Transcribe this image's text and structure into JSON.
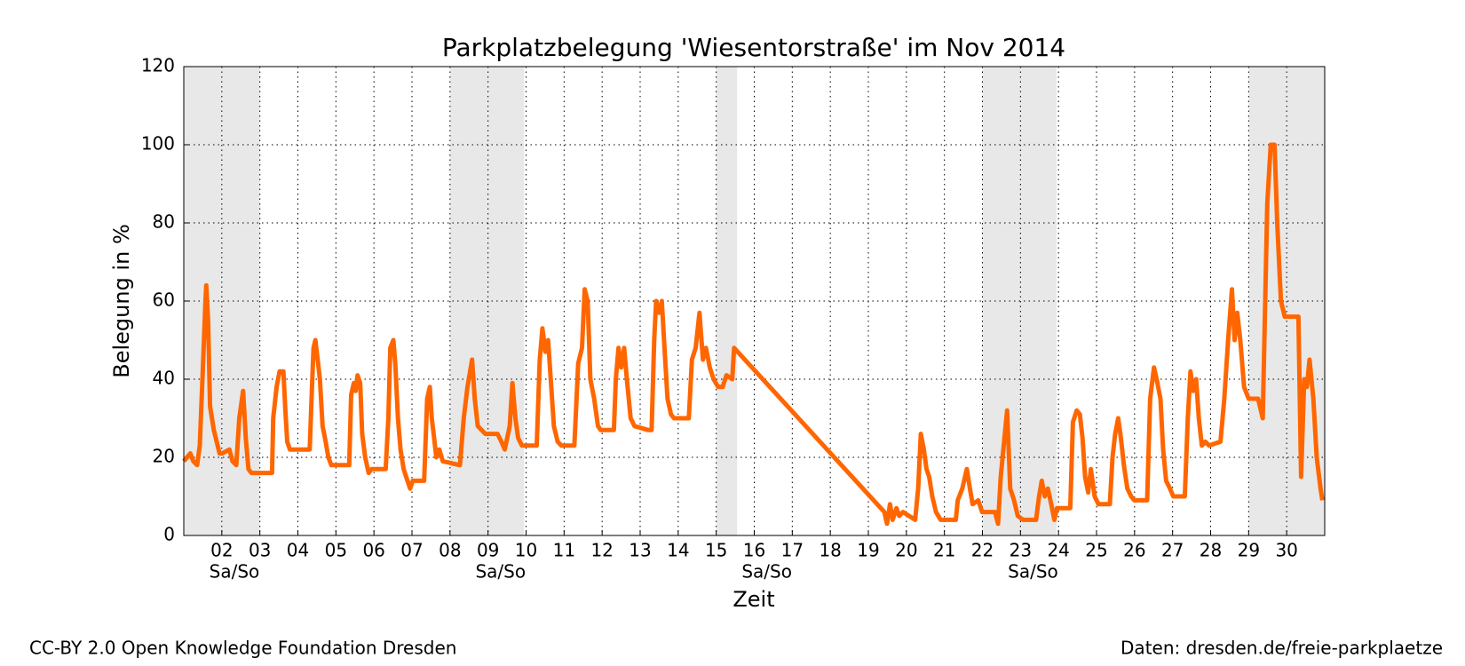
{
  "chart_data": {
    "type": "line",
    "title": "Parkplatzbelegung 'Wiesentorstraße' im Nov 2014",
    "xlabel": "Zeit",
    "ylabel": "Belegung in %",
    "color": "#ff6600",
    "grid": true,
    "shade_color": "#e8e8e8",
    "shaded_spans": [
      [
        1,
        3
      ],
      [
        8,
        9.95
      ],
      [
        15,
        15.55
      ],
      [
        22,
        23.95
      ],
      [
        29,
        31
      ]
    ],
    "annotations": [
      {
        "text": "Sa/So",
        "x": 2.33
      },
      {
        "text": "Sa/So",
        "x": 9.33
      },
      {
        "text": "Sa/So",
        "x": 16.33
      },
      {
        "text": "Sa/So",
        "x": 23.33
      }
    ],
    "xlim": [
      1,
      31
    ],
    "xticks": [
      {
        "value": 2,
        "label": "02"
      },
      {
        "value": 3,
        "label": "03"
      },
      {
        "value": 4,
        "label": "04"
      },
      {
        "value": 5,
        "label": "05"
      },
      {
        "value": 6,
        "label": "06"
      },
      {
        "value": 7,
        "label": "07"
      },
      {
        "value": 8,
        "label": "08"
      },
      {
        "value": 9,
        "label": "09"
      },
      10,
      11,
      12,
      13,
      14,
      15,
      16,
      17,
      18,
      19,
      20,
      21,
      22,
      23,
      24,
      25,
      26,
      27,
      28,
      29,
      30
    ],
    "ylim": [
      0,
      120
    ],
    "yticks": [
      0,
      20,
      40,
      60,
      80,
      100,
      120
    ],
    "x": [
      1.0,
      1.17,
      1.25,
      1.35,
      1.42,
      1.49,
      1.57,
      1.59,
      1.64,
      1.69,
      1.79,
      1.89,
      1.94,
      2.01,
      2.2,
      2.28,
      2.38,
      2.46,
      2.56,
      2.63,
      2.7,
      2.78,
      3.32,
      3.35,
      3.44,
      3.52,
      3.62,
      3.67,
      3.72,
      3.79,
      4.31,
      4.36,
      4.41,
      4.46,
      4.51,
      4.58,
      4.65,
      4.73,
      4.8,
      4.88,
      5.35,
      5.4,
      5.47,
      5.52,
      5.57,
      5.64,
      5.69,
      5.77,
      5.86,
      5.94,
      6.31,
      6.38,
      6.43,
      6.51,
      6.56,
      6.63,
      6.7,
      6.78,
      6.88,
      6.95,
      7.02,
      7.32,
      7.4,
      7.47,
      7.52,
      7.57,
      7.64,
      7.72,
      7.81,
      8.26,
      8.36,
      8.46,
      8.58,
      8.65,
      8.73,
      8.83,
      8.93,
      9.25,
      9.35,
      9.44,
      9.57,
      9.64,
      9.72,
      9.79,
      9.89,
      10.28,
      10.36,
      10.43,
      10.51,
      10.58,
      10.65,
      10.73,
      10.83,
      10.93,
      11.27,
      11.37,
      11.47,
      11.54,
      11.62,
      11.69,
      11.79,
      11.89,
      11.96,
      12.31,
      12.36,
      12.43,
      12.5,
      12.58,
      12.65,
      12.75,
      12.85,
      13.2,
      13.3,
      13.37,
      13.42,
      13.5,
      13.57,
      13.64,
      13.72,
      13.81,
      13.89,
      14.28,
      14.36,
      14.46,
      14.56,
      14.65,
      14.73,
      14.83,
      14.93,
      15.05,
      15.17,
      15.27,
      15.42,
      15.47,
      19.42,
      19.49,
      19.57,
      19.64,
      19.74,
      19.81,
      19.91,
      20.23,
      20.31,
      20.38,
      20.46,
      20.53,
      20.6,
      20.68,
      20.78,
      20.9,
      21.3,
      21.35,
      21.47,
      21.59,
      21.67,
      21.74,
      21.89,
      21.99,
      22.33,
      22.41,
      22.48,
      22.58,
      22.65,
      22.73,
      22.83,
      22.93,
      23.07,
      23.41,
      23.49,
      23.56,
      23.64,
      23.72,
      23.81,
      23.89,
      23.96,
      24.31,
      24.38,
      24.48,
      24.56,
      24.63,
      24.7,
      24.78,
      24.85,
      24.95,
      25.05,
      25.35,
      25.42,
      25.49,
      25.57,
      25.64,
      25.72,
      25.81,
      25.91,
      25.99,
      26.33,
      26.41,
      26.51,
      26.58,
      26.68,
      26.75,
      26.83,
      26.93,
      27.02,
      27.32,
      27.4,
      27.47,
      27.54,
      27.62,
      27.69,
      27.77,
      27.86,
      27.96,
      28.26,
      28.36,
      28.46,
      28.56,
      28.63,
      28.7,
      28.78,
      28.88,
      29.0,
      29.25,
      29.37,
      29.49,
      29.58,
      29.68,
      29.75,
      29.85,
      29.95,
      30.31,
      30.38,
      30.46,
      30.53,
      30.6,
      30.7,
      30.79,
      30.89,
      30.94
    ],
    "values": [
      19,
      21,
      19,
      18,
      23,
      40,
      60,
      64,
      55,
      33,
      27,
      23,
      21,
      21,
      22,
      19,
      18,
      30,
      37,
      25,
      17,
      16,
      16,
      30,
      38,
      42,
      42,
      32,
      24,
      22,
      22,
      35,
      48,
      50,
      46,
      40,
      28,
      24,
      20,
      18,
      18,
      36,
      39,
      37,
      41,
      39,
      26,
      20,
      16,
      17,
      17,
      30,
      48,
      50,
      44,
      30,
      22,
      17,
      14,
      12,
      14,
      14,
      35,
      38,
      30,
      26,
      20,
      22,
      19,
      18,
      30,
      38,
      45,
      35,
      28,
      27,
      26,
      26,
      24,
      22,
      28,
      39,
      30,
      25,
      23,
      23,
      45,
      53,
      47,
      50,
      40,
      28,
      24,
      23,
      23,
      44,
      48,
      63,
      60,
      40,
      35,
      28,
      27,
      27,
      40,
      48,
      43,
      48,
      40,
      30,
      28,
      27,
      27,
      50,
      60,
      57,
      60,
      48,
      35,
      31,
      30,
      30,
      45,
      48,
      57,
      45,
      48,
      43,
      40,
      38,
      38,
      41,
      40,
      48,
      6,
      3,
      8,
      4,
      7,
      5,
      6,
      4,
      12,
      26,
      22,
      17,
      15,
      10,
      6,
      4,
      4,
      9,
      12,
      17,
      12,
      8,
      9,
      6,
      6,
      3,
      15,
      25,
      32,
      12,
      9,
      5,
      4,
      4,
      10,
      14,
      10,
      12,
      8,
      4,
      7,
      7,
      29,
      32,
      31,
      25,
      15,
      11,
      17,
      10,
      8,
      8,
      20,
      26,
      30,
      25,
      18,
      12,
      10,
      9,
      9,
      35,
      43,
      40,
      35,
      22,
      14,
      12,
      10,
      10,
      30,
      42,
      37,
      40,
      30,
      23,
      24,
      23,
      24,
      35,
      50,
      63,
      50,
      57,
      50,
      38,
      35,
      35,
      30,
      85,
      100,
      100,
      80,
      60,
      56,
      56,
      15,
      40,
      38,
      45,
      35,
      20,
      12,
      9
    ]
  },
  "footer_left": "CC-BY 2.0 Open Knowledge Foundation Dresden",
  "footer_right": "Daten: dresden.de/freie-parkplaetze"
}
